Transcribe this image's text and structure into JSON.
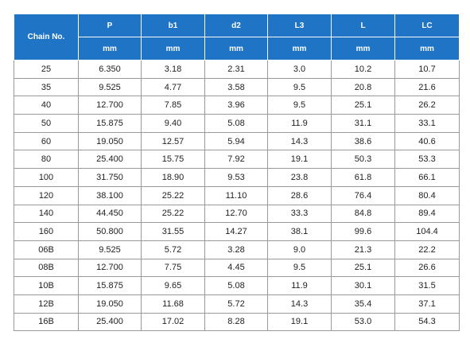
{
  "table": {
    "corner": "Chain No.",
    "columns": [
      "P",
      "b1",
      "d2",
      "L3",
      "L",
      "LC"
    ],
    "units": [
      "mm",
      "mm",
      "mm",
      "mm",
      "mm",
      "mm"
    ],
    "rows": [
      [
        "25",
        "6.350",
        "3.18",
        "2.31",
        "3.0",
        "10.2",
        "10.7"
      ],
      [
        "35",
        "9.525",
        "4.77",
        "3.58",
        "9.5",
        "20.8",
        "21.6"
      ],
      [
        "40",
        "12.700",
        "7.85",
        "3.96",
        "9.5",
        "25.1",
        "26.2"
      ],
      [
        "50",
        "15.875",
        "9.40",
        "5.08",
        "11.9",
        "31.1",
        "33.1"
      ],
      [
        "60",
        "19.050",
        "12.57",
        "5.94",
        "14.3",
        "38.6",
        "40.6"
      ],
      [
        "80",
        "25.400",
        "15.75",
        "7.92",
        "19.1",
        "50.3",
        "53.3"
      ],
      [
        "100",
        "31.750",
        "18.90",
        "9.53",
        "23.8",
        "61.8",
        "66.1"
      ],
      [
        "120",
        "38.100",
        "25.22",
        "11.10",
        "28.6",
        "76.4",
        "80.4"
      ],
      [
        "140",
        "44.450",
        "25.22",
        "12.70",
        "33.3",
        "84.8",
        "89.4"
      ],
      [
        "160",
        "50.800",
        "31.55",
        "14.27",
        "38.1",
        "99.6",
        "104.4"
      ],
      [
        "06B",
        "9.525",
        "5.72",
        "3.28",
        "9.0",
        "21.3",
        "22.2"
      ],
      [
        "08B",
        "12.700",
        "7.75",
        "4.45",
        "9.5",
        "25.1",
        "26.6"
      ],
      [
        "10B",
        "15.875",
        "9.65",
        "5.08",
        "11.9",
        "30.1",
        "31.5"
      ],
      [
        "12B",
        "19.050",
        "11.68",
        "5.72",
        "14.3",
        "35.4",
        "37.1"
      ],
      [
        "16B",
        "25.400",
        "17.02",
        "8.28",
        "19.1",
        "53.0",
        "54.3"
      ]
    ]
  }
}
